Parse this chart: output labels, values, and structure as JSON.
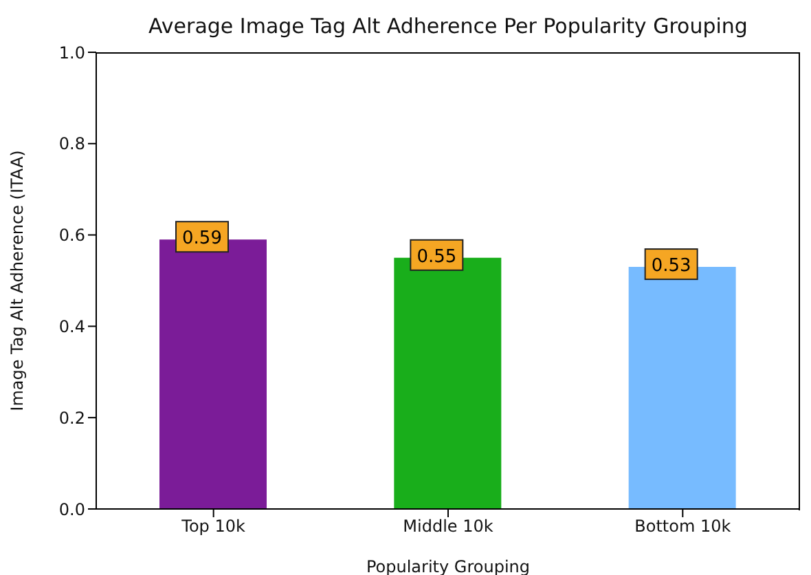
{
  "chart_data": {
    "type": "bar",
    "title": "Average Image Tag Alt Adherence Per Popularity Grouping",
    "xlabel": "Popularity Grouping",
    "ylabel": "Image Tag Alt Adherence (ITAA)",
    "categories": [
      "Top 10k",
      "Middle 10k",
      "Bottom 10k"
    ],
    "values": [
      0.59,
      0.55,
      0.53
    ],
    "colors": [
      "#7b1c98",
      "#19ae1b",
      "#77bbff"
    ],
    "ylim": [
      0,
      1
    ],
    "yticks": [
      {
        "value": 0,
        "label": "0.0"
      },
      0.2,
      0.4,
      0.6,
      0.8,
      {
        "value": 1,
        "label": "1.0"
      }
    ],
    "data_labels": true,
    "grid": false
  }
}
